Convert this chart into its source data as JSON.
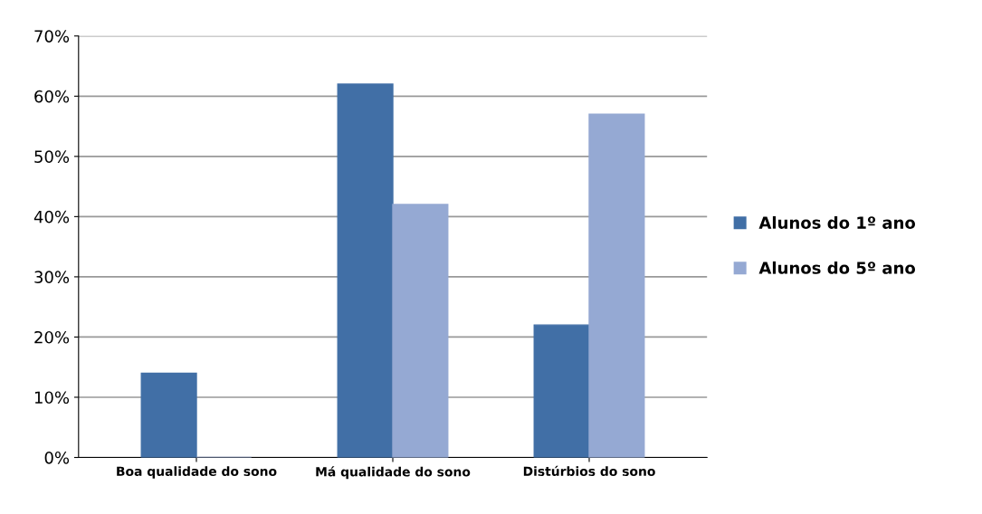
{
  "chart_data": {
    "type": "bar",
    "categories": [
      "Boa qualidade do sono",
      "Má qualidade do sono",
      "Distúrbios do sono"
    ],
    "series": [
      {
        "name": "Alunos do 1º ano",
        "color": "#416fa6",
        "values": [
          14,
          62,
          22
        ]
      },
      {
        "name": "Alunos do 5º ano",
        "color": "#95a9d3",
        "values": [
          0,
          42,
          57
        ]
      }
    ],
    "ylim": [
      0,
      70
    ],
    "yticks": [
      {
        "value": 0,
        "label": "0%"
      },
      {
        "value": 10,
        "label": "10%"
      },
      {
        "value": 20,
        "label": "20%"
      },
      {
        "value": 30,
        "label": "30%"
      },
      {
        "value": 40,
        "label": "40%"
      },
      {
        "value": 50,
        "label": "50%"
      },
      {
        "value": 60,
        "label": "60%"
      },
      {
        "value": 70,
        "label": "70%"
      }
    ],
    "grid": "y",
    "legend": "right"
  }
}
